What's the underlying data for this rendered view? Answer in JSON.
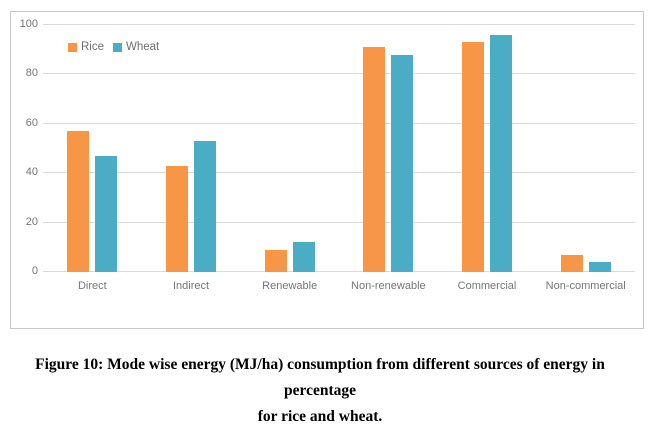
{
  "chart_data": {
    "type": "bar",
    "title": "",
    "xlabel": "",
    "ylabel": "",
    "categories": [
      "Direct",
      "Indirect",
      "Renewable",
      "Non-renewable",
      "Commercial",
      "Non-commercial"
    ],
    "series": [
      {
        "name": "Rice",
        "color": "#F79646",
        "values": [
          57,
          43,
          9,
          91,
          93,
          7
        ]
      },
      {
        "name": "Wheat",
        "color": "#4BACC6",
        "values": [
          47,
          53,
          12,
          88,
          96,
          4
        ]
      }
    ],
    "ylim": [
      0,
      100
    ],
    "yticks": [
      0,
      20,
      40,
      60,
      80,
      100
    ],
    "grid": "horizontal",
    "legend_position": "top-left-inside"
  },
  "legend": {
    "items": [
      {
        "label": "Rice",
        "color": "#F79646"
      },
      {
        "label": "Wheat",
        "color": "#4BACC6"
      }
    ]
  },
  "caption": {
    "line1": "Figure 10: Mode wise energy (MJ/ha) consumption from different sources of energy in percentage",
    "line2": "for rice and wheat."
  },
  "colors": {
    "rice": "#F79646",
    "wheat": "#4BACC6",
    "gridline": "#d9d9d9",
    "frame_border": "#c8c8c8",
    "axis_text": "#757575",
    "caption_text": "#000000"
  }
}
